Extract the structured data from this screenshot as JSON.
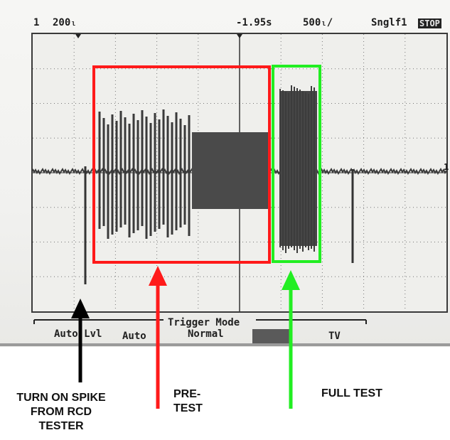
{
  "scope": {
    "channel": "1",
    "volts_per_div": "200",
    "volts_unit_glyph": "ₗ",
    "trigger_delay": "-1.95s",
    "time_per_div": "500",
    "time_unit_glyph": "ₗ/",
    "sweep_mode": "Sngl",
    "trigger_source": "f1",
    "run_state": "STOP",
    "right_channel_marker": "1"
  },
  "softkeys": {
    "group_title": "Trigger Mode",
    "items": [
      "Auto Lvl",
      "Auto",
      "Normal",
      "",
      "TV"
    ],
    "selected_index": 3
  },
  "highlights": [
    {
      "name": "pre-test",
      "color": "#ff1a1a"
    },
    {
      "name": "full-test",
      "color": "#22ee22"
    }
  ],
  "annotations": [
    {
      "text_lines": [
        "TURN ON SPIKE",
        "FROM RCD",
        "TESTER"
      ],
      "arrow_color": "#000000"
    },
    {
      "text_lines": [
        "PRE-",
        "TEST"
      ],
      "arrow_color": "#ff1a1a"
    },
    {
      "text_lines": [
        "FULL TEST"
      ],
      "arrow_color": "#22ee22"
    }
  ]
}
